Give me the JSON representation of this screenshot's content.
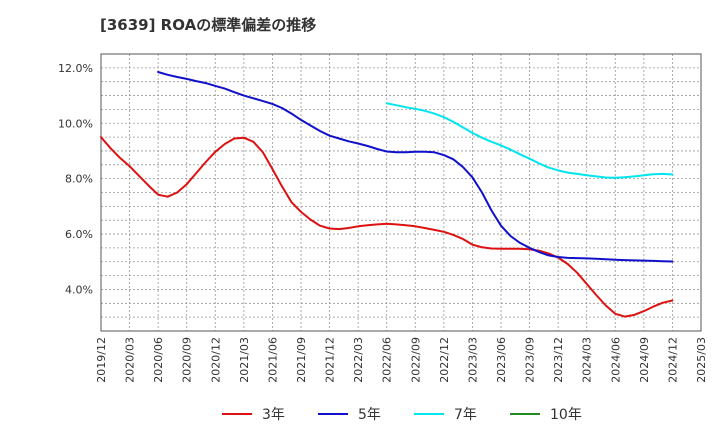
{
  "chart_data": {
    "type": "line",
    "title": "[3639]  ROAの標準偏差の推移",
    "xlabel": "",
    "ylabel": "",
    "x_ticks": [
      "2019/12",
      "2020/03",
      "2020/06",
      "2020/09",
      "2020/12",
      "2021/03",
      "2021/06",
      "2021/09",
      "2021/12",
      "2022/03",
      "2022/06",
      "2022/09",
      "2022/12",
      "2023/03",
      "2023/06",
      "2023/09",
      "2023/12",
      "2024/03",
      "2024/06",
      "2024/09",
      "2024/12",
      "2025/03"
    ],
    "y_ticks": [
      "4.0%",
      "6.0%",
      "8.0%",
      "10.0%",
      "12.0%"
    ],
    "ylim": [
      2.5,
      12.5
    ],
    "grid": true,
    "legend_position": "bottom",
    "series": [
      {
        "name": "3年",
        "color": "#dd1111",
        "points": [
          [
            "2019/12",
            9.5
          ],
          [
            "2020/01",
            9.1
          ],
          [
            "2020/02",
            8.75
          ],
          [
            "2020/03",
            8.45
          ],
          [
            "2020/04",
            8.1
          ],
          [
            "2020/05",
            7.75
          ],
          [
            "2020/06",
            7.42
          ],
          [
            "2020/07",
            7.35
          ],
          [
            "2020/08",
            7.5
          ],
          [
            "2020/09",
            7.8
          ],
          [
            "2020/10",
            8.2
          ],
          [
            "2020/11",
            8.6
          ],
          [
            "2020/12",
            8.97
          ],
          [
            "2021/01",
            9.25
          ],
          [
            "2021/02",
            9.45
          ],
          [
            "2021/03",
            9.48
          ],
          [
            "2021/04",
            9.33
          ],
          [
            "2021/05",
            8.95
          ],
          [
            "2021/06",
            8.35
          ],
          [
            "2021/07",
            7.72
          ],
          [
            "2021/08",
            7.15
          ],
          [
            "2021/09",
            6.8
          ],
          [
            "2021/10",
            6.52
          ],
          [
            "2021/11",
            6.3
          ],
          [
            "2021/12",
            6.2
          ],
          [
            "2022/01",
            6.18
          ],
          [
            "2022/02",
            6.22
          ],
          [
            "2022/03",
            6.28
          ],
          [
            "2022/04",
            6.32
          ],
          [
            "2022/05",
            6.35
          ],
          [
            "2022/06",
            6.37
          ],
          [
            "2022/07",
            6.35
          ],
          [
            "2022/08",
            6.32
          ],
          [
            "2022/09",
            6.28
          ],
          [
            "2022/10",
            6.22
          ],
          [
            "2022/11",
            6.15
          ],
          [
            "2022/12",
            6.08
          ],
          [
            "2023/01",
            5.97
          ],
          [
            "2023/02",
            5.82
          ],
          [
            "2023/03",
            5.62
          ],
          [
            "2023/04",
            5.52
          ],
          [
            "2023/05",
            5.48
          ],
          [
            "2023/06",
            5.47
          ],
          [
            "2023/07",
            5.47
          ],
          [
            "2023/08",
            5.47
          ],
          [
            "2023/09",
            5.45
          ],
          [
            "2023/10",
            5.4
          ],
          [
            "2023/11",
            5.3
          ],
          [
            "2023/12",
            5.15
          ],
          [
            "2024/01",
            4.92
          ],
          [
            "2024/02",
            4.6
          ],
          [
            "2024/03",
            4.2
          ],
          [
            "2024/04",
            3.8
          ],
          [
            "2024/05",
            3.42
          ],
          [
            "2024/06",
            3.12
          ],
          [
            "2024/07",
            3.02
          ],
          [
            "2024/08",
            3.08
          ],
          [
            "2024/09",
            3.22
          ],
          [
            "2024/10",
            3.38
          ],
          [
            "2024/11",
            3.52
          ],
          [
            "2024/12",
            3.6
          ]
        ]
      },
      {
        "name": "5年",
        "color": "#1111cc",
        "points": [
          [
            "2020/06",
            11.85
          ],
          [
            "2020/07",
            11.75
          ],
          [
            "2020/08",
            11.67
          ],
          [
            "2020/09",
            11.6
          ],
          [
            "2020/10",
            11.52
          ],
          [
            "2020/11",
            11.45
          ],
          [
            "2020/12",
            11.35
          ],
          [
            "2021/01",
            11.25
          ],
          [
            "2021/02",
            11.12
          ],
          [
            "2021/03",
            11.0
          ],
          [
            "2021/04",
            10.9
          ],
          [
            "2021/05",
            10.8
          ],
          [
            "2021/06",
            10.7
          ],
          [
            "2021/07",
            10.55
          ],
          [
            "2021/08",
            10.35
          ],
          [
            "2021/09",
            10.12
          ],
          [
            "2021/10",
            9.92
          ],
          [
            "2021/11",
            9.72
          ],
          [
            "2021/12",
            9.55
          ],
          [
            "2022/01",
            9.45
          ],
          [
            "2022/02",
            9.35
          ],
          [
            "2022/03",
            9.27
          ],
          [
            "2022/04",
            9.18
          ],
          [
            "2022/05",
            9.07
          ],
          [
            "2022/06",
            8.98
          ],
          [
            "2022/07",
            8.95
          ],
          [
            "2022/08",
            8.95
          ],
          [
            "2022/09",
            8.97
          ],
          [
            "2022/10",
            8.97
          ],
          [
            "2022/11",
            8.95
          ],
          [
            "2022/12",
            8.85
          ],
          [
            "2023/01",
            8.7
          ],
          [
            "2023/02",
            8.42
          ],
          [
            "2023/03",
            8.05
          ],
          [
            "2023/04",
            7.5
          ],
          [
            "2023/05",
            6.85
          ],
          [
            "2023/06",
            6.3
          ],
          [
            "2023/07",
            5.93
          ],
          [
            "2023/08",
            5.68
          ],
          [
            "2023/09",
            5.5
          ],
          [
            "2023/10",
            5.35
          ],
          [
            "2023/11",
            5.23
          ],
          [
            "2023/12",
            5.17
          ],
          [
            "2024/01",
            5.14
          ],
          [
            "2024/02",
            5.13
          ],
          [
            "2024/03",
            5.12
          ],
          [
            "2024/04",
            5.11
          ],
          [
            "2024/05",
            5.09
          ],
          [
            "2024/06",
            5.07
          ],
          [
            "2024/07",
            5.06
          ],
          [
            "2024/08",
            5.05
          ],
          [
            "2024/09",
            5.04
          ],
          [
            "2024/10",
            5.03
          ],
          [
            "2024/11",
            5.02
          ],
          [
            "2024/12",
            5.01
          ]
        ]
      },
      {
        "name": "7年",
        "color": "#00e5ee",
        "points": [
          [
            "2022/06",
            10.72
          ],
          [
            "2022/07",
            10.65
          ],
          [
            "2022/08",
            10.58
          ],
          [
            "2022/09",
            10.52
          ],
          [
            "2022/10",
            10.45
          ],
          [
            "2022/11",
            10.35
          ],
          [
            "2022/12",
            10.22
          ],
          [
            "2023/01",
            10.05
          ],
          [
            "2023/02",
            9.85
          ],
          [
            "2023/03",
            9.65
          ],
          [
            "2023/04",
            9.48
          ],
          [
            "2023/05",
            9.33
          ],
          [
            "2023/06",
            9.2
          ],
          [
            "2023/07",
            9.05
          ],
          [
            "2023/08",
            8.88
          ],
          [
            "2023/09",
            8.72
          ],
          [
            "2023/10",
            8.55
          ],
          [
            "2023/11",
            8.4
          ],
          [
            "2023/12",
            8.3
          ],
          [
            "2024/01",
            8.22
          ],
          [
            "2024/02",
            8.17
          ],
          [
            "2024/03",
            8.12
          ],
          [
            "2024/04",
            8.08
          ],
          [
            "2024/05",
            8.04
          ],
          [
            "2024/06",
            8.03
          ],
          [
            "2024/07",
            8.05
          ],
          [
            "2024/08",
            8.08
          ],
          [
            "2024/09",
            8.12
          ],
          [
            "2024/10",
            8.16
          ],
          [
            "2024/11",
            8.17
          ],
          [
            "2024/12",
            8.15
          ]
        ]
      },
      {
        "name": "10年",
        "color": "#228b22",
        "points": []
      }
    ]
  }
}
